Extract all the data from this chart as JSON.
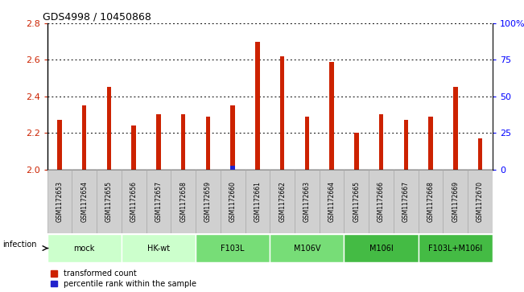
{
  "title": "GDS4998 / 10450868",
  "samples": [
    "GSM1172653",
    "GSM1172654",
    "GSM1172655",
    "GSM1172656",
    "GSM1172657",
    "GSM1172658",
    "GSM1172659",
    "GSM1172660",
    "GSM1172661",
    "GSM1172662",
    "GSM1172663",
    "GSM1172664",
    "GSM1172665",
    "GSM1172666",
    "GSM1172667",
    "GSM1172668",
    "GSM1172669",
    "GSM1172670"
  ],
  "red_values": [
    2.27,
    2.35,
    2.45,
    2.24,
    2.3,
    2.3,
    2.29,
    2.35,
    2.7,
    2.62,
    2.29,
    2.59,
    2.2,
    2.3,
    2.27,
    2.29,
    2.45,
    2.17
  ],
  "blue_values": [
    2,
    2,
    2,
    2,
    2,
    2,
    2,
    2.02,
    2,
    2,
    2,
    2,
    2,
    2,
    2,
    2,
    2,
    2
  ],
  "groups": [
    {
      "label": "mock",
      "start": 0,
      "end": 2,
      "color": "#ccffcc"
    },
    {
      "label": "HK-wt",
      "start": 3,
      "end": 5,
      "color": "#ccffcc"
    },
    {
      "label": "F103L",
      "start": 6,
      "end": 8,
      "color": "#77dd77"
    },
    {
      "label": "M106V",
      "start": 9,
      "end": 11,
      "color": "#77dd77"
    },
    {
      "label": "M106I",
      "start": 12,
      "end": 14,
      "color": "#44bb44"
    },
    {
      "label": "F103L+M106I",
      "start": 15,
      "end": 17,
      "color": "#44bb44"
    }
  ],
  "ylim_left": [
    2.0,
    2.8
  ],
  "ylim_right": [
    0,
    100
  ],
  "yticks_left": [
    2.0,
    2.2,
    2.4,
    2.6,
    2.8
  ],
  "yticks_right": [
    0,
    25,
    50,
    75,
    100
  ],
  "ytick_labels_right": [
    "0",
    "25",
    "50",
    "75",
    "100%"
  ],
  "bar_width": 0.18,
  "red_color": "#cc2200",
  "blue_color": "#2222cc",
  "cell_color": "#d0d0d0",
  "cell_edge_color": "#aaaaaa",
  "legend_red": "transformed count",
  "legend_blue": "percentile rank within the sample",
  "infection_label": "infection"
}
